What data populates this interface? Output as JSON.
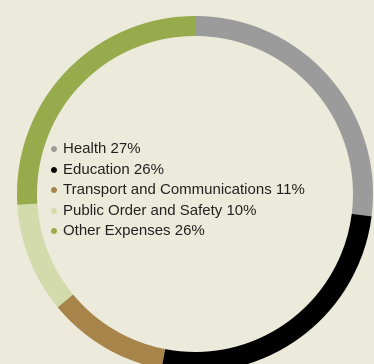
{
  "chart_data": {
    "type": "pie",
    "variant": "donut",
    "title": "",
    "legend_position": "center",
    "slices": [
      {
        "label": "Health",
        "value": 27,
        "value_label": "27%",
        "color": "#9b9b9b"
      },
      {
        "label": "Education",
        "value": 26,
        "value_label": "26%",
        "color": "#000000"
      },
      {
        "label": "Transport and Communications",
        "value": 11,
        "value_label": "11%",
        "color": "#a7844a"
      },
      {
        "label": "Public Order and Safety",
        "value": 10,
        "value_label": "10%",
        "color": "#d3dbad"
      },
      {
        "label": "Other Expenses",
        "value": 26,
        "value_label": "26%",
        "color": "#97aa4c"
      }
    ]
  }
}
